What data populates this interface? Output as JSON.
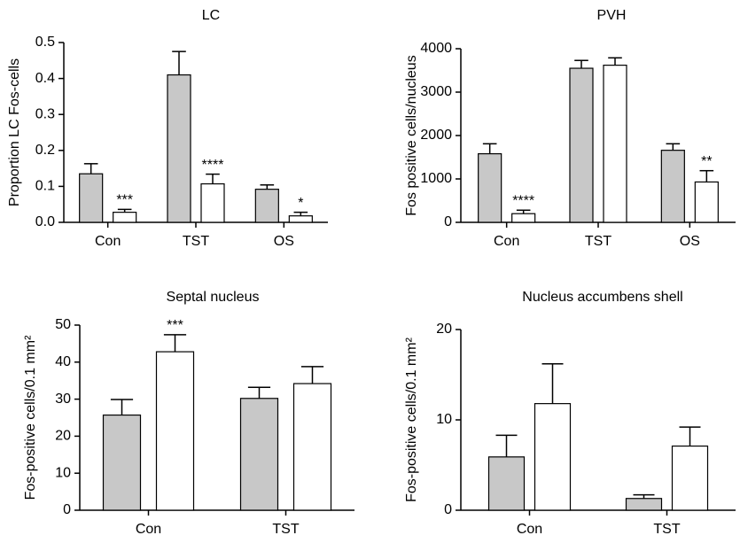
{
  "chart_data": [
    {
      "type": "bar",
      "title": "LC",
      "y_label": "Proportion LC Fos-cells",
      "categories": [
        "Con",
        "TST",
        "OS"
      ],
      "ylim": [
        0,
        0.5
      ],
      "yticks": [
        {
          "value": 0,
          "label": "0.0"
        },
        0.1,
        0.2,
        0.3,
        0.4,
        0.5
      ],
      "series": [
        {
          "color": "#c8c8c8",
          "values": [
            0.135,
            0.41,
            0.092
          ],
          "errors": [
            0.028,
            0.065,
            0.012
          ]
        },
        {
          "color": "#ffffff",
          "values": [
            0.028,
            0.107,
            0.018
          ],
          "errors": [
            0.008,
            0.027,
            0.01
          ],
          "annotations": [
            "***",
            "****",
            "*"
          ]
        }
      ]
    },
    {
      "type": "bar",
      "title": "PVH",
      "y_label": "Fos positive cells/nucleus",
      "categories": [
        "Con",
        "TST",
        "OS"
      ],
      "ylim": [
        0,
        4000
      ],
      "yticks": [
        0,
        1000,
        2000,
        3000,
        4000
      ],
      "series": [
        {
          "color": "#c8c8c8",
          "values": [
            1580,
            3550,
            1660
          ],
          "errors": [
            230,
            180,
            150
          ]
        },
        {
          "color": "#ffffff",
          "values": [
            200,
            3620,
            930
          ],
          "errors": [
            80,
            170,
            260
          ],
          "annotations": [
            "****",
            null,
            "**"
          ]
        }
      ]
    },
    {
      "type": "bar",
      "title": "Septal nucleus",
      "y_label": "Fos-positive cells/0.1 mm²",
      "categories": [
        "Con",
        "TST"
      ],
      "ylim": [
        0,
        50
      ],
      "yticks": [
        0,
        10,
        20,
        30,
        40,
        50
      ],
      "series": [
        {
          "color": "#c8c8c8",
          "values": [
            25.7,
            30.2
          ],
          "errors": [
            4.2,
            3
          ]
        },
        {
          "color": "#ffffff",
          "values": [
            42.8,
            34.2
          ],
          "errors": [
            4.6,
            4.6
          ],
          "annotations": [
            "***",
            null
          ]
        }
      ]
    },
    {
      "type": "bar",
      "title": "Nucleus accumbens shell",
      "y_label": "Fos-positive cells/0.1 mm²",
      "categories": [
        "Con",
        "TST"
      ],
      "ylim": [
        0,
        20
      ],
      "yticks": [
        0,
        10,
        20
      ],
      "series": [
        {
          "color": "#c8c8c8",
          "values": [
            5.9,
            1.3
          ],
          "errors": [
            2.4,
            0.4
          ]
        },
        {
          "color": "#ffffff",
          "values": [
            11.8,
            7.1
          ],
          "errors": [
            4.4,
            2.1
          ]
        }
      ]
    }
  ]
}
